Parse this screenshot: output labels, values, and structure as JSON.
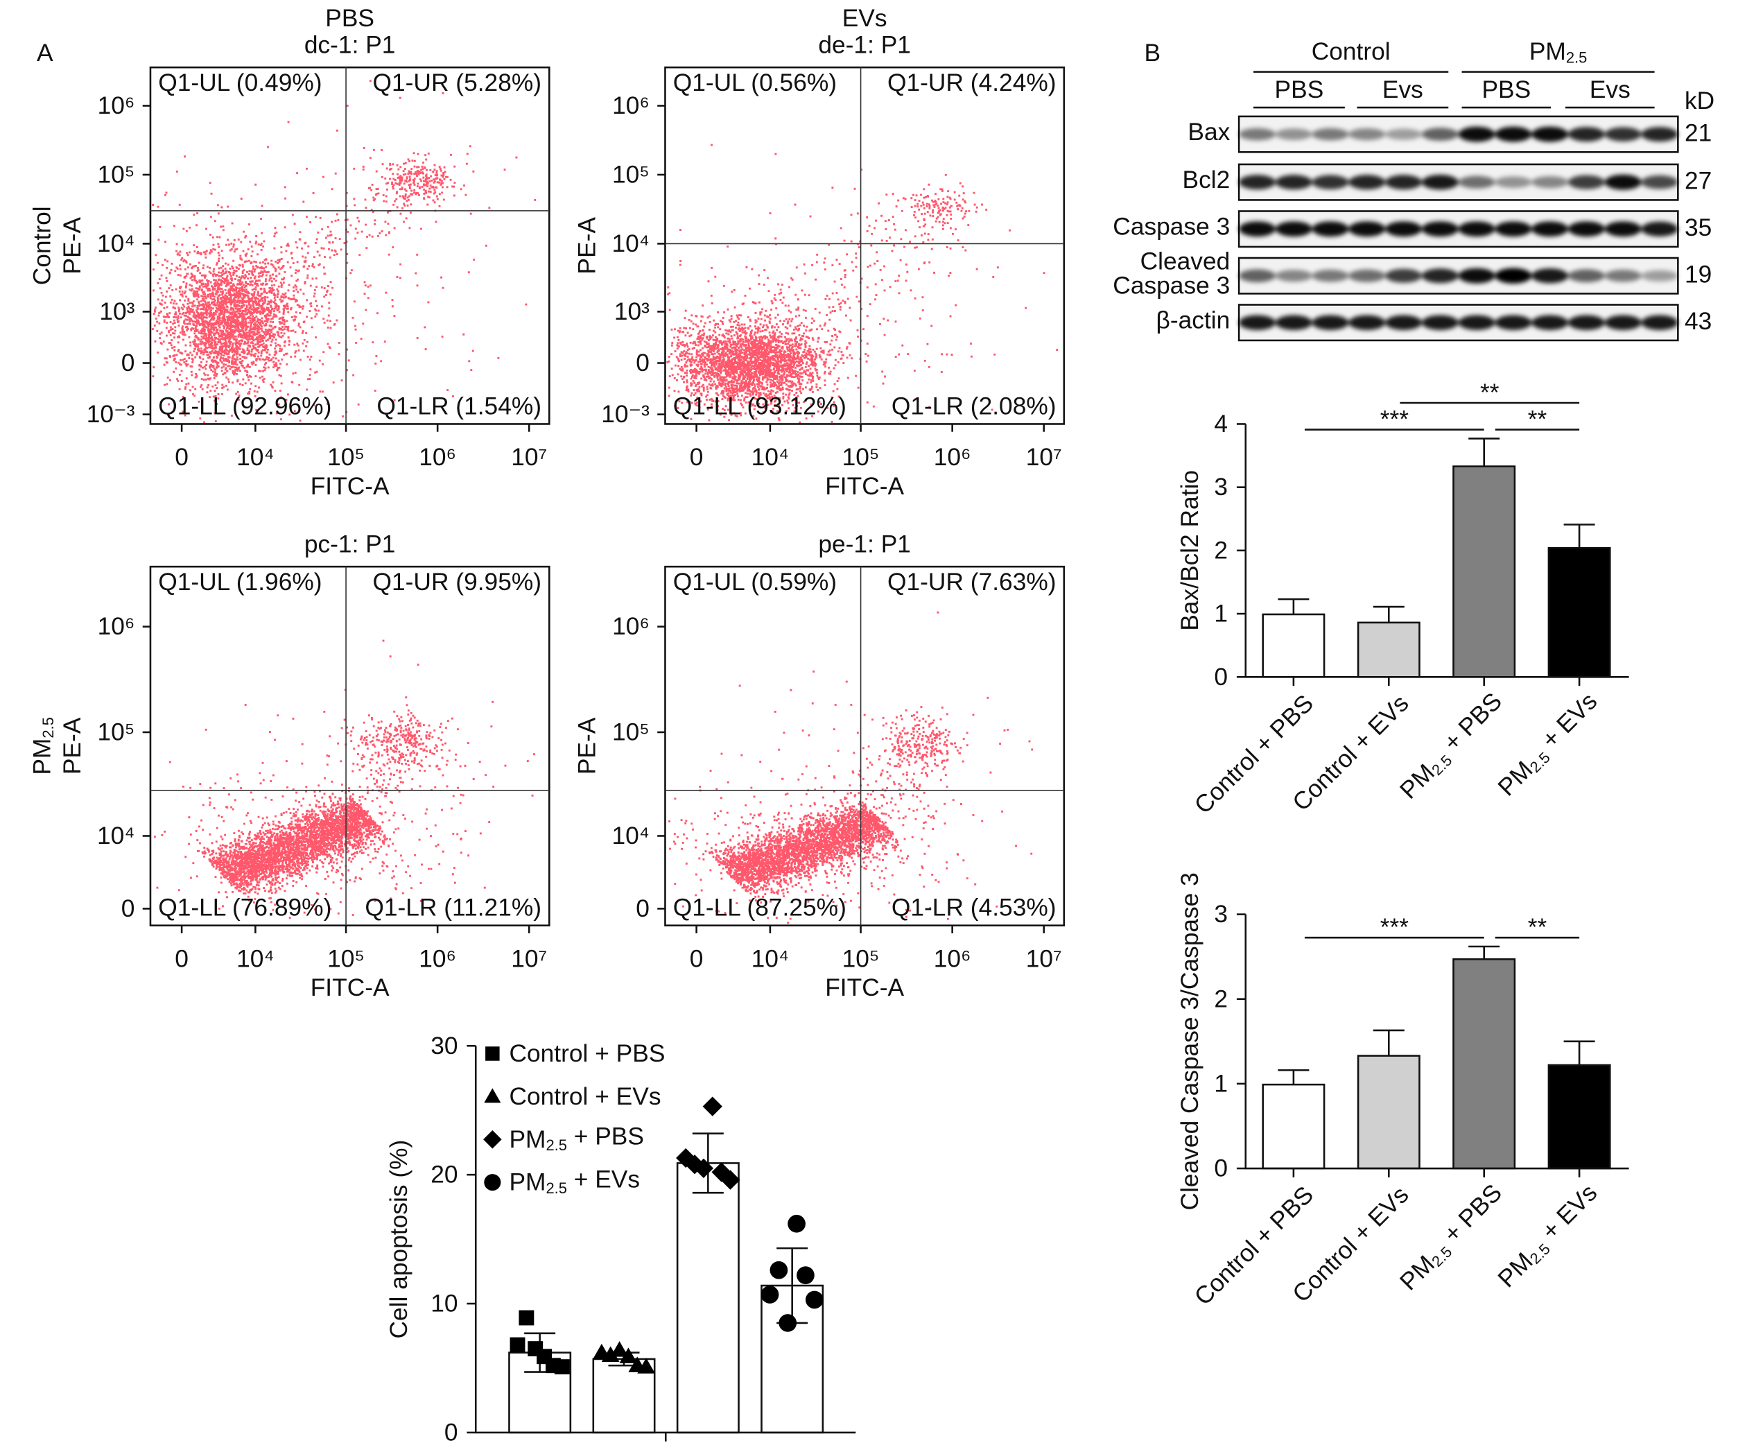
{
  "panels": [
    "A",
    "B"
  ],
  "chart_data": [
    {
      "type": "flow",
      "column_label": "PBS",
      "title": "dc-1: P1",
      "row_label": "Control",
      "ylabel": "PE-A",
      "xlabel": "FITC-A",
      "quadrants": {
        "UL": "Q1-UL (0.49%)",
        "UR": "Q1-UR (5.28%)",
        "LL": "Q1-LL (92.96%)",
        "LR": "Q1-LR (1.54%)"
      },
      "scale": "biexponential",
      "color": "#ff1f3a",
      "xlim": [
        -2800,
        16600000
      ],
      "xticks": [
        0,
        {
          "value": 10000,
          "label": "10⁴"
        },
        {
          "value": 100000,
          "label": "10⁵"
        },
        {
          "value": 1000000,
          "label": "10⁶"
        },
        {
          "value": 10000000,
          "label": "10⁷"
        }
      ],
      "ylim": [
        -1400,
        3600000
      ],
      "yticks": [
        {
          "value": -1000,
          "label": "10⁻³"
        },
        0,
        {
          "value": 1000,
          "label": "10³"
        },
        {
          "value": 10000,
          "label": "10⁴"
        },
        {
          "value": 100000,
          "label": "10⁵"
        },
        {
          "value": 1000000,
          "label": "10⁶"
        }
      ],
      "gate": {
        "x": 100000,
        "y": 30000
      }
    },
    {
      "type": "flow",
      "column_label": "EVs",
      "title": "de-1: P1",
      "ylabel": "PE-A",
      "xlabel": "FITC-A",
      "quadrants": {
        "UL": "Q1-UL (0.56%)",
        "UR": "Q1-UR (4.24%)",
        "LL": "Q1-LL (93.12%)",
        "LR": "Q1-LR (2.08%)"
      },
      "scale": "biexponential",
      "color": "#ff1f3a",
      "xlim": [
        -2800,
        16600000
      ],
      "xticks": [
        0,
        {
          "value": 10000,
          "label": "10⁴"
        },
        {
          "value": 100000,
          "label": "10⁵"
        },
        {
          "value": 1000000,
          "label": "10⁶"
        },
        {
          "value": 10000000,
          "label": "10⁷"
        }
      ],
      "ylim": [
        -1400,
        3600000
      ],
      "yticks": [
        {
          "value": -1000,
          "label": "10⁻³"
        },
        0,
        {
          "value": 1000,
          "label": "10³"
        },
        {
          "value": 10000,
          "label": "10⁴"
        },
        {
          "value": 100000,
          "label": "10⁵"
        },
        {
          "value": 1000000,
          "label": "10⁶"
        }
      ],
      "gate": {
        "x": 100000,
        "y": 10000
      }
    },
    {
      "type": "flow",
      "title": "pc-1: P1",
      "row_label": "PM2.5",
      "ylabel": "PE-A",
      "xlabel": "FITC-A",
      "quadrants": {
        "UL": "Q1-UL (1.96%)",
        "UR": "Q1-UR (9.95%)",
        "LL": "Q1-LL (76.89%)",
        "LR": "Q1-LR (11.21%)"
      },
      "scale": "biexponential",
      "color": "#ff1f3a",
      "xlim": [
        -2800,
        16600000
      ],
      "xticks": [
        0,
        {
          "value": 10000,
          "label": "10⁴"
        },
        {
          "value": 100000,
          "label": "10⁵"
        },
        {
          "value": 1000000,
          "label": "10⁶"
        },
        {
          "value": 10000000,
          "label": "10⁷"
        }
      ],
      "ylim": [
        -1600,
        3700000
      ],
      "yticks": [
        0,
        {
          "value": 10000,
          "label": "10⁴"
        },
        {
          "value": 100000,
          "label": "10⁵"
        },
        {
          "value": 1000000,
          "label": "10⁶"
        }
      ],
      "gate": {
        "x": 100000,
        "y": 28000
      }
    },
    {
      "type": "flow",
      "title": "pe-1: P1",
      "ylabel": "PE-A",
      "xlabel": "FITC-A",
      "quadrants": {
        "UL": "Q1-UL (0.59%)",
        "UR": "Q1-UR (7.63%)",
        "LL": "Q1-LL (87.25%)",
        "LR": "Q1-LR (4.53%)"
      },
      "scale": "biexponential",
      "color": "#ff1f3a",
      "xlim": [
        -2800,
        16600000
      ],
      "xticks": [
        0,
        {
          "value": 10000,
          "label": "10⁴"
        },
        {
          "value": 100000,
          "label": "10⁵"
        },
        {
          "value": 1000000,
          "label": "10⁶"
        },
        {
          "value": 10000000,
          "label": "10⁷"
        }
      ],
      "ylim": [
        -1600,
        3700000
      ],
      "yticks": [
        0,
        {
          "value": 10000,
          "label": "10⁴"
        },
        {
          "value": 100000,
          "label": "10⁵"
        },
        {
          "value": 1000000,
          "label": "10⁶"
        }
      ],
      "gate": {
        "x": 100000,
        "y": 28000
      }
    },
    {
      "type": "bar_scatter",
      "ylabel": "Cell apoptosis (%)",
      "ylim": [
        0,
        30
      ],
      "yticks": [
        0,
        10,
        20,
        30
      ],
      "bar_color": "#ffffff",
      "marker_color": "#000000",
      "series": [
        {
          "name": "Control + PBS",
          "marker": "square",
          "value": 6.2,
          "error": 1.5,
          "points": [
            6.8,
            8.9,
            6.5,
            5.9,
            5.2,
            5.1
          ]
        },
        {
          "name": "Control + EVs",
          "marker": "triangle",
          "value": 5.7,
          "error": 0.5,
          "points": [
            6.2,
            6.0,
            6.4,
            5.9,
            5.2,
            5.1
          ]
        },
        {
          "name": "PM2.5 + PBS",
          "marker": "diamond",
          "value": 20.9,
          "error": 2.3,
          "points": [
            21.3,
            20.8,
            20.5,
            25.3,
            20.2,
            19.6
          ]
        },
        {
          "name": "PM2.5 + EVs",
          "marker": "circle",
          "value": 11.4,
          "error": 2.9,
          "points": [
            10.7,
            12.6,
            8.5,
            16.2,
            12.2,
            10.3
          ]
        }
      ]
    },
    {
      "type": "bar",
      "ylabel": "Bax/Bcl2 Ratio",
      "categories": [
        "Control + PBS",
        "Control + EVs",
        "PM2.5 + PBS",
        "PM2.5 + EVs"
      ],
      "values": [
        0.99,
        0.86,
        3.33,
        2.04
      ],
      "errors": [
        0.24,
        0.25,
        0.44,
        0.37
      ],
      "colors": [
        "#ffffff",
        "#d0d0d0",
        "#808080",
        "#000000"
      ],
      "ylim": [
        0,
        4
      ],
      "yticks": [
        0,
        1,
        2,
        3,
        4
      ],
      "annotations": [
        {
          "label": "***",
          "from": 0,
          "to": 2
        },
        {
          "label": "**",
          "from": 2,
          "to": 3
        },
        {
          "label": "**",
          "from": 1,
          "to": 3
        }
      ]
    },
    {
      "type": "bar",
      "ylabel": "Cleaved Caspase 3/Caspase 3",
      "categories": [
        "Control + PBS",
        "Control + EVs",
        "PM2.5 + PBS",
        "PM2.5 + EVs"
      ],
      "values": [
        0.99,
        1.33,
        2.47,
        1.22
      ],
      "errors": [
        0.17,
        0.3,
        0.15,
        0.28
      ],
      "colors": [
        "#ffffff",
        "#d0d0d0",
        "#808080",
        "#000000"
      ],
      "ylim": [
        0,
        3
      ],
      "yticks": [
        0,
        1,
        2,
        3
      ],
      "annotations": [
        {
          "label": "***",
          "from": 0,
          "to": 2
        },
        {
          "label": "**",
          "from": 2,
          "to": 3
        }
      ]
    }
  ],
  "western_blot": {
    "groups": [
      {
        "label": "Control",
        "subgroups": [
          "PBS",
          "Evs"
        ]
      },
      {
        "label": "PM2.5",
        "subgroups": [
          "PBS",
          "Evs"
        ]
      }
    ],
    "unit": "kD",
    "rows": [
      {
        "label": [
          "Bax"
        ],
        "kd": 21
      },
      {
        "label": [
          "Bcl2"
        ],
        "kd": 27
      },
      {
        "label": [
          "Caspase 3"
        ],
        "kd": 35
      },
      {
        "label": [
          "Cleaved",
          "Caspase 3"
        ],
        "kd": 19
      },
      {
        "label": [
          "β-actin"
        ],
        "kd": 43
      }
    ]
  }
}
